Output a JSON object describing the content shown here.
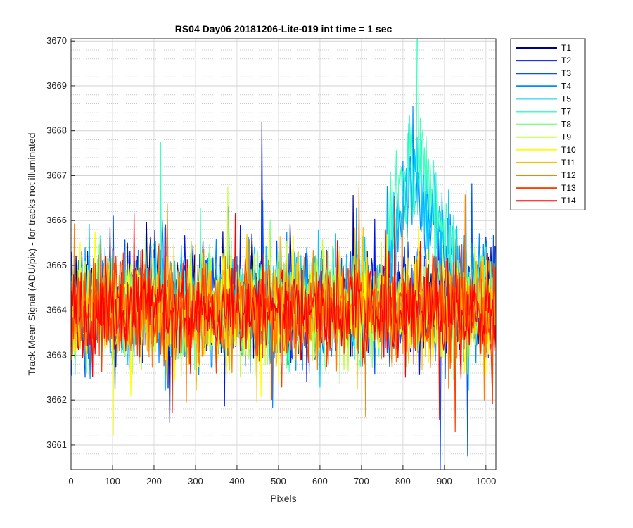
{
  "chart_data": {
    "type": "line",
    "title": "RS04 Day06 20181206-Lite-019 int time = 1 sec",
    "xlabel": "Pixels",
    "ylabel": "Track Mean Signal (ADU/pix) - for tracks not illuminated",
    "xlim": [
      0,
      1024
    ],
    "ylim": [
      3660.45,
      3670.05
    ],
    "x_ticks": [
      0,
      100,
      200,
      300,
      400,
      500,
      600,
      700,
      800,
      900,
      1000
    ],
    "y_ticks": [
      3661,
      3662,
      3663,
      3664,
      3665,
      3666,
      3667,
      3668,
      3669,
      3670
    ],
    "grid": true,
    "minor_grid": true,
    "legend_position": "outside-top-right",
    "series": [
      {
        "name": "T1",
        "color": "#00008f",
        "mean": 3664.2,
        "noise": 0.95
      },
      {
        "name": "T2",
        "color": "#0014e6",
        "mean": 3664.2,
        "noise": 0.95
      },
      {
        "name": "T3",
        "color": "#0050ff",
        "mean": 3664.1,
        "noise": 0.95
      },
      {
        "name": "T4",
        "color": "#008cff",
        "mean": 3664.1,
        "noise": 0.95
      },
      {
        "name": "T5",
        "color": "#00c8ff",
        "mean": 3664.2,
        "noise": 0.95
      },
      {
        "name": "T7",
        "color": "#40ffbf",
        "mean": 3664.1,
        "noise": 0.95
      },
      {
        "name": "T8",
        "color": "#80ff80",
        "mean": 3664.0,
        "noise": 0.95
      },
      {
        "name": "T9",
        "color": "#bfff40",
        "mean": 3664.0,
        "noise": 0.95
      },
      {
        "name": "T10",
        "color": "#ffff00",
        "mean": 3664.0,
        "noise": 0.95
      },
      {
        "name": "T11",
        "color": "#ffbf00",
        "mean": 3664.0,
        "noise": 0.95
      },
      {
        "name": "T12",
        "color": "#ff8000",
        "mean": 3664.0,
        "noise": 0.95
      },
      {
        "name": "T13",
        "color": "#ff4000",
        "mean": 3664.0,
        "noise": 0.95
      },
      {
        "name": "T14",
        "color": "#ff0000",
        "mean": 3664.0,
        "noise": 0.8
      }
    ],
    "annotations": [
      {
        "x": 460,
        "y": 3668.2,
        "series": "T2",
        "note": "spike"
      },
      {
        "x": 835,
        "y": 3670.05,
        "series": "T7",
        "note": "peak in 760-900 region"
      },
      {
        "x": 890,
        "y": 3660.45,
        "series": "T3",
        "note": "minimum"
      }
    ]
  }
}
